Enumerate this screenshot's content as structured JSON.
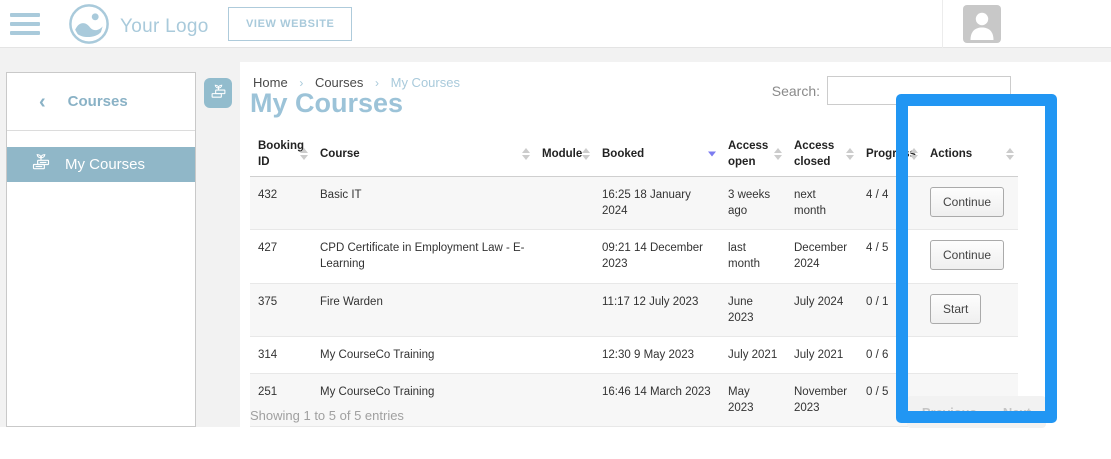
{
  "header": {
    "logo_text": "Your Logo",
    "view_website_label": "VIEW WEBSITE"
  },
  "sidebar": {
    "back_label": "Courses",
    "active_item": "My Courses"
  },
  "breadcrumb": {
    "items": [
      "Home",
      "Courses",
      "My Courses"
    ]
  },
  "page": {
    "title": "My Courses"
  },
  "search": {
    "label": "Search:",
    "value": ""
  },
  "table": {
    "columns": [
      "Booking ID",
      "Course",
      "Module",
      "Booked",
      "Access open",
      "Access closed",
      "Progress",
      "Actions"
    ],
    "sorted_column": "Booked",
    "sort_direction": "desc",
    "rows": [
      {
        "booking_id": "432",
        "course": "Basic IT",
        "module": "",
        "booked": "16:25 18 January 2024",
        "access_open": "3 weeks ago",
        "access_closed": "next month",
        "progress": "4 / 4",
        "action": "Continue"
      },
      {
        "booking_id": "427",
        "course": "CPD Certificate in Employment Law - E-Learning",
        "module": "",
        "booked": "09:21 14 December 2023",
        "access_open": "last month",
        "access_closed": "December 2024",
        "progress": "4 / 5",
        "action": "Continue"
      },
      {
        "booking_id": "375",
        "course": "Fire Warden",
        "module": "",
        "booked": "11:17 12 July 2023",
        "access_open": "June 2023",
        "access_closed": "July 2024",
        "progress": "0 / 1",
        "action": "Start"
      },
      {
        "booking_id": "314",
        "course": "My CourseCo Training",
        "module": "",
        "booked": "12:30 9 May 2023",
        "access_open": "July 2021",
        "access_closed": "July 2021",
        "progress": "0 / 6",
        "action": ""
      },
      {
        "booking_id": "251",
        "course": "My CourseCo Training",
        "module": "",
        "booked": "16:46 14 March 2023",
        "access_open": "May 2023",
        "access_closed": "November 2023",
        "progress": "0 / 5",
        "action": ""
      }
    ],
    "footer": {
      "showing_text": "Showing 1 to 5 of 5 entries",
      "previous_label": "Previous",
      "next_label": "Next"
    }
  },
  "colors": {
    "accent": "#a9cadb",
    "title": "#9cc3d8",
    "sidebar_active_bg": "#90b7c8",
    "annotation_blue": "#2196f3",
    "active_sort_arrow": "#7c7cf0",
    "row_stripe": "#f7f7f7"
  },
  "annotation": {
    "type": "highlight-rectangle",
    "target": "Actions column"
  }
}
